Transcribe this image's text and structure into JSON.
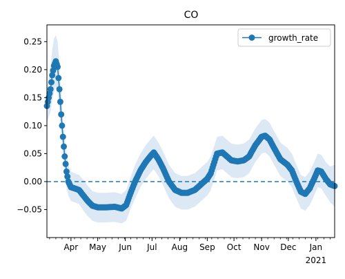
{
  "chart_data": {
    "type": "line",
    "title": "CO",
    "xlabel": "",
    "ylabel": "",
    "x_tick_labels": [
      "Apr",
      "May",
      "Jun",
      "Jul",
      "Aug",
      "Sep",
      "Oct",
      "Nov",
      "Dec",
      "Jan"
    ],
    "x_year_label": "2021",
    "x_tick_dates": [
      "2020-04-01",
      "2020-05-01",
      "2020-06-01",
      "2020-07-01",
      "2020-08-01",
      "2020-09-01",
      "2020-10-01",
      "2020-11-01",
      "2020-12-01",
      "2021-01-01"
    ],
    "xlim": [
      "2020-03-05",
      "2021-01-22"
    ],
    "ylim": [
      -0.1,
      0.28
    ],
    "y_ticks": [
      -0.05,
      0.0,
      0.05,
      0.1,
      0.15,
      0.2,
      0.25
    ],
    "y_tick_labels": [
      "−0.05",
      "0.00",
      "0.05",
      "0.10",
      "0.15",
      "0.20",
      "0.25"
    ],
    "legend": {
      "position": "top-right",
      "entries": [
        "growth_rate"
      ]
    },
    "reference_line": {
      "y": 0.0,
      "style": "dashed"
    },
    "series": [
      {
        "name": "growth_rate",
        "color": "#1f77b4",
        "band_color": "#dce9f5",
        "points": [
          [
            "2020-03-05",
            0.135,
            0.105,
            0.165
          ],
          [
            "2020-03-07",
            0.15,
            0.115,
            0.185
          ],
          [
            "2020-03-09",
            0.165,
            0.125,
            0.205
          ],
          [
            "2020-03-11",
            0.19,
            0.145,
            0.235
          ],
          [
            "2020-03-13",
            0.207,
            0.16,
            0.255
          ],
          [
            "2020-03-15",
            0.215,
            0.17,
            0.262
          ],
          [
            "2020-03-17",
            0.205,
            0.16,
            0.25
          ],
          [
            "2020-03-19",
            0.165,
            0.125,
            0.21
          ],
          [
            "2020-03-21",
            0.12,
            0.08,
            0.16
          ],
          [
            "2020-03-23",
            0.08,
            0.045,
            0.115
          ],
          [
            "2020-03-25",
            0.045,
            0.015,
            0.078
          ],
          [
            "2020-03-27",
            0.018,
            -0.01,
            0.05
          ],
          [
            "2020-03-29",
            0.0,
            -0.025,
            0.03
          ],
          [
            "2020-04-01",
            -0.01,
            -0.035,
            0.018
          ],
          [
            "2020-04-05",
            -0.012,
            -0.037,
            0.015
          ],
          [
            "2020-04-10",
            -0.015,
            -0.04,
            0.012
          ],
          [
            "2020-04-15",
            -0.025,
            -0.052,
            0.003
          ],
          [
            "2020-04-20",
            -0.035,
            -0.062,
            -0.008
          ],
          [
            "2020-04-25",
            -0.043,
            -0.07,
            -0.017
          ],
          [
            "2020-05-01",
            -0.046,
            -0.073,
            -0.02
          ],
          [
            "2020-05-10",
            -0.046,
            -0.073,
            -0.02
          ],
          [
            "2020-05-20",
            -0.045,
            -0.072,
            -0.019
          ],
          [
            "2020-05-28",
            -0.048,
            -0.075,
            -0.022
          ],
          [
            "2020-06-02",
            -0.042,
            -0.07,
            -0.015
          ],
          [
            "2020-06-07",
            -0.02,
            -0.048,
            0.008
          ],
          [
            "2020-06-12",
            0.0,
            -0.03,
            0.03
          ],
          [
            "2020-06-18",
            0.02,
            -0.01,
            0.05
          ],
          [
            "2020-06-24",
            0.035,
            0.005,
            0.065
          ],
          [
            "2020-06-30",
            0.047,
            0.017,
            0.077
          ],
          [
            "2020-07-03",
            0.052,
            0.022,
            0.082
          ],
          [
            "2020-07-08",
            0.04,
            0.01,
            0.07
          ],
          [
            "2020-07-13",
            0.025,
            -0.005,
            0.055
          ],
          [
            "2020-07-20",
            0.0,
            -0.03,
            0.03
          ],
          [
            "2020-07-27",
            -0.015,
            -0.045,
            0.015
          ],
          [
            "2020-08-03",
            -0.02,
            -0.05,
            0.01
          ],
          [
            "2020-08-10",
            -0.02,
            -0.05,
            0.01
          ],
          [
            "2020-08-18",
            -0.015,
            -0.045,
            0.015
          ],
          [
            "2020-08-25",
            -0.005,
            -0.035,
            0.025
          ],
          [
            "2020-09-01",
            0.005,
            -0.025,
            0.035
          ],
          [
            "2020-09-05",
            0.015,
            -0.015,
            0.045
          ],
          [
            "2020-09-09",
            0.035,
            0.005,
            0.065
          ],
          [
            "2020-09-12",
            0.05,
            0.02,
            0.08
          ],
          [
            "2020-09-18",
            0.052,
            0.022,
            0.082
          ],
          [
            "2020-09-23",
            0.045,
            0.015,
            0.075
          ],
          [
            "2020-09-28",
            0.038,
            0.008,
            0.068
          ],
          [
            "2020-10-05",
            0.036,
            0.006,
            0.066
          ],
          [
            "2020-10-12",
            0.038,
            0.008,
            0.068
          ],
          [
            "2020-10-18",
            0.045,
            0.015,
            0.075
          ],
          [
            "2020-10-25",
            0.065,
            0.035,
            0.095
          ],
          [
            "2020-11-01",
            0.08,
            0.05,
            0.11
          ],
          [
            "2020-11-05",
            0.082,
            0.052,
            0.112
          ],
          [
            "2020-11-10",
            0.075,
            0.045,
            0.105
          ],
          [
            "2020-11-15",
            0.06,
            0.03,
            0.09
          ],
          [
            "2020-11-22",
            0.04,
            0.01,
            0.07
          ],
          [
            "2020-11-30",
            0.03,
            0.0,
            0.06
          ],
          [
            "2020-12-05",
            0.02,
            -0.01,
            0.05
          ],
          [
            "2020-12-10",
            0.0,
            -0.03,
            0.03
          ],
          [
            "2020-12-15",
            -0.018,
            -0.048,
            0.012
          ],
          [
            "2020-12-20",
            -0.022,
            -0.052,
            0.008
          ],
          [
            "2020-12-25",
            -0.012,
            -0.042,
            0.018
          ],
          [
            "2020-12-30",
            0.005,
            -0.025,
            0.035
          ],
          [
            "2021-01-03",
            0.02,
            -0.01,
            0.05
          ],
          [
            "2021-01-07",
            0.018,
            -0.012,
            0.048
          ],
          [
            "2021-01-12",
            0.005,
            -0.025,
            0.035
          ],
          [
            "2021-01-17",
            -0.005,
            -0.037,
            0.027
          ],
          [
            "2021-01-22",
            -0.008,
            -0.045,
            0.03
          ]
        ]
      }
    ]
  },
  "colors": {
    "series": "#1f77b4",
    "band": "#dce9f5",
    "axes": "#000000"
  }
}
